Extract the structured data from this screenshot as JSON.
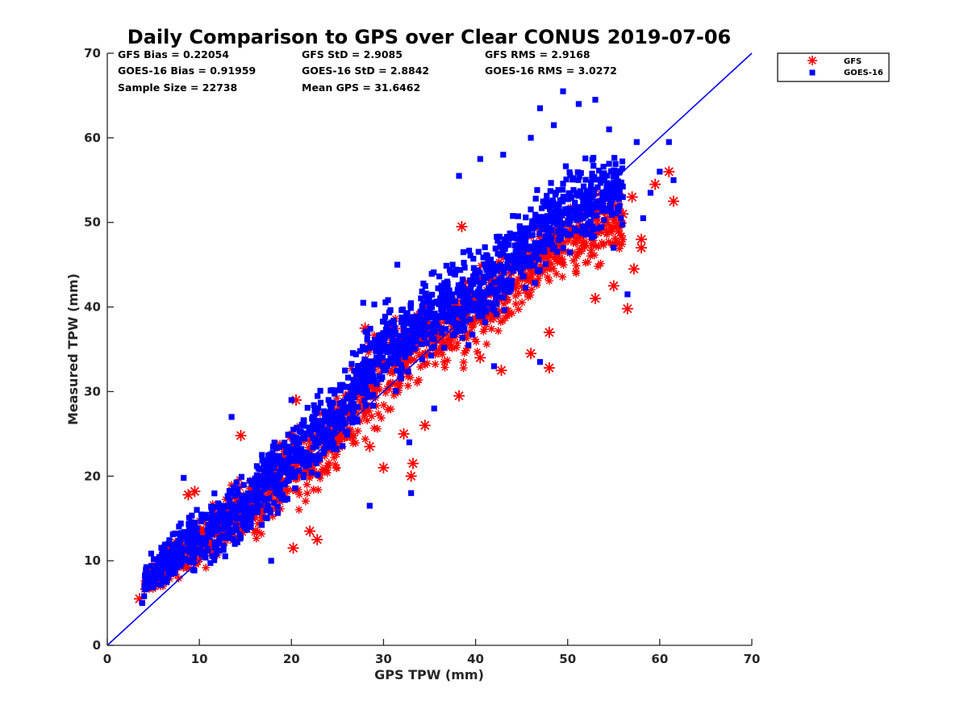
{
  "chart_data": {
    "type": "scatter",
    "title": "Daily Comparison to GPS over Clear CONUS 2019-07-06",
    "xlabel": "GPS TPW (mm)",
    "ylabel": "Measured TPW (mm)",
    "xlim": [
      0,
      70
    ],
    "ylim": [
      0,
      70
    ],
    "xticks": [
      "0",
      "10",
      "20",
      "30",
      "40",
      "50",
      "60",
      "70"
    ],
    "yticks": [
      "0",
      "10",
      "20",
      "30",
      "40",
      "50",
      "60",
      "70"
    ],
    "grid": false,
    "legend_position": "outside-top-right",
    "stats": [
      [
        "GFS Bias = 0.22054",
        "GFS StD = 2.9085",
        "GFS RMS = 2.9168"
      ],
      [
        "GOES-16 Bias = 0.91959",
        "GOES-16 StD = 2.8842",
        "GOES-16 RMS = 3.0272"
      ],
      [
        "Sample Size = 22738",
        "Mean GPS = 31.6462",
        ""
      ]
    ],
    "reference_line": {
      "label": "1:1",
      "x": [
        0,
        70
      ],
      "y": [
        0,
        70
      ],
      "color": "#0000ff"
    },
    "series": [
      {
        "name": "GFS",
        "marker": "asterisk",
        "color": "#ff0000",
        "approx_cloud": [
          [
            4,
            5,
            9
          ],
          [
            6,
            6,
            12
          ],
          [
            8,
            7,
            15
          ],
          [
            10,
            8,
            17
          ],
          [
            12,
            9,
            18
          ],
          [
            14,
            10,
            20
          ],
          [
            16,
            11,
            22
          ],
          [
            18,
            13,
            24
          ],
          [
            20,
            15,
            27
          ],
          [
            22,
            16,
            28
          ],
          [
            24,
            18,
            30
          ],
          [
            26,
            20,
            33
          ],
          [
            28,
            22,
            37
          ],
          [
            30,
            25,
            40
          ],
          [
            32,
            27,
            41
          ],
          [
            34,
            29,
            42
          ],
          [
            36,
            31,
            43
          ],
          [
            38,
            32,
            45
          ],
          [
            40,
            33,
            46
          ],
          [
            42,
            35,
            47
          ],
          [
            44,
            37,
            49
          ],
          [
            46,
            39,
            51
          ],
          [
            48,
            41,
            52
          ],
          [
            50,
            42,
            54
          ],
          [
            52,
            43,
            55
          ],
          [
            54,
            44,
            56
          ],
          [
            56,
            45,
            56
          ]
        ],
        "outliers": [
          [
            3.5,
            5.5
          ],
          [
            8.8,
            17.8
          ],
          [
            9.5,
            18.2
          ],
          [
            14.5,
            24.8
          ],
          [
            20.2,
            11.5
          ],
          [
            22.8,
            12.5
          ],
          [
            20.5,
            29
          ],
          [
            22,
            13.5
          ],
          [
            28,
            37.5
          ],
          [
            28.5,
            23.5
          ],
          [
            30,
            21
          ],
          [
            32.2,
            25
          ],
          [
            33,
            20
          ],
          [
            33.2,
            21.5
          ],
          [
            34.5,
            26
          ],
          [
            38.2,
            29.5
          ],
          [
            38.5,
            49.5
          ],
          [
            40.5,
            34
          ],
          [
            42.8,
            32.5
          ],
          [
            46,
            34.5
          ],
          [
            48,
            32.8
          ],
          [
            48,
            37
          ],
          [
            53,
            41
          ],
          [
            55,
            42.5
          ],
          [
            56.5,
            39.8
          ],
          [
            57.2,
            44.5
          ],
          [
            58,
            47
          ],
          [
            58,
            48
          ],
          [
            59.5,
            54.5
          ],
          [
            61,
            56
          ],
          [
            61.5,
            52.5
          ],
          [
            56,
            51
          ],
          [
            57,
            53
          ]
        ]
      },
      {
        "name": "GOES-16",
        "marker": "square",
        "color": "#0000ff",
        "approx_cloud": [
          [
            4,
            5,
            10
          ],
          [
            6,
            6,
            13
          ],
          [
            8,
            7,
            16
          ],
          [
            10,
            8,
            18
          ],
          [
            12,
            9,
            19
          ],
          [
            14,
            10,
            21
          ],
          [
            16,
            12,
            23
          ],
          [
            18,
            14,
            26
          ],
          [
            20,
            16,
            28
          ],
          [
            22,
            18,
            30
          ],
          [
            24,
            20,
            32
          ],
          [
            26,
            22,
            35
          ],
          [
            28,
            26,
            39
          ],
          [
            30,
            28,
            42
          ],
          [
            32,
            30,
            43
          ],
          [
            34,
            32,
            44
          ],
          [
            36,
            33,
            46
          ],
          [
            38,
            34,
            48
          ],
          [
            40,
            35,
            49
          ],
          [
            42,
            37,
            50
          ],
          [
            44,
            39,
            52
          ],
          [
            46,
            41,
            54
          ],
          [
            48,
            43,
            56
          ],
          [
            50,
            45,
            58
          ],
          [
            52,
            46,
            59
          ],
          [
            54,
            47,
            60
          ],
          [
            56,
            48,
            60
          ]
        ],
        "outliers": [
          [
            3.8,
            5
          ],
          [
            8.3,
            19.8
          ],
          [
            13.5,
            27
          ],
          [
            17.8,
            10
          ],
          [
            20,
            29
          ],
          [
            27.8,
            40.5
          ],
          [
            28.5,
            16.5
          ],
          [
            29,
            40.3
          ],
          [
            30.5,
            38
          ],
          [
            31.5,
            45
          ],
          [
            32.8,
            24
          ],
          [
            33,
            18
          ],
          [
            35.5,
            28
          ],
          [
            37.5,
            45
          ],
          [
            38.2,
            55.5
          ],
          [
            40.5,
            57.5
          ],
          [
            43,
            58
          ],
          [
            46,
            60
          ],
          [
            47,
            63.5
          ],
          [
            48.5,
            61.5
          ],
          [
            49.5,
            65.5
          ],
          [
            51.2,
            64
          ],
          [
            53,
            64.5
          ],
          [
            54.5,
            61
          ],
          [
            55,
            47
          ],
          [
            56,
            53
          ],
          [
            56.5,
            41.5
          ],
          [
            57.5,
            59.5
          ],
          [
            58.2,
            50.5
          ],
          [
            59,
            53.5
          ],
          [
            60,
            56
          ],
          [
            61,
            59.5
          ],
          [
            61.5,
            55
          ],
          [
            47,
            33.5
          ],
          [
            42,
            33
          ]
        ]
      }
    ]
  }
}
